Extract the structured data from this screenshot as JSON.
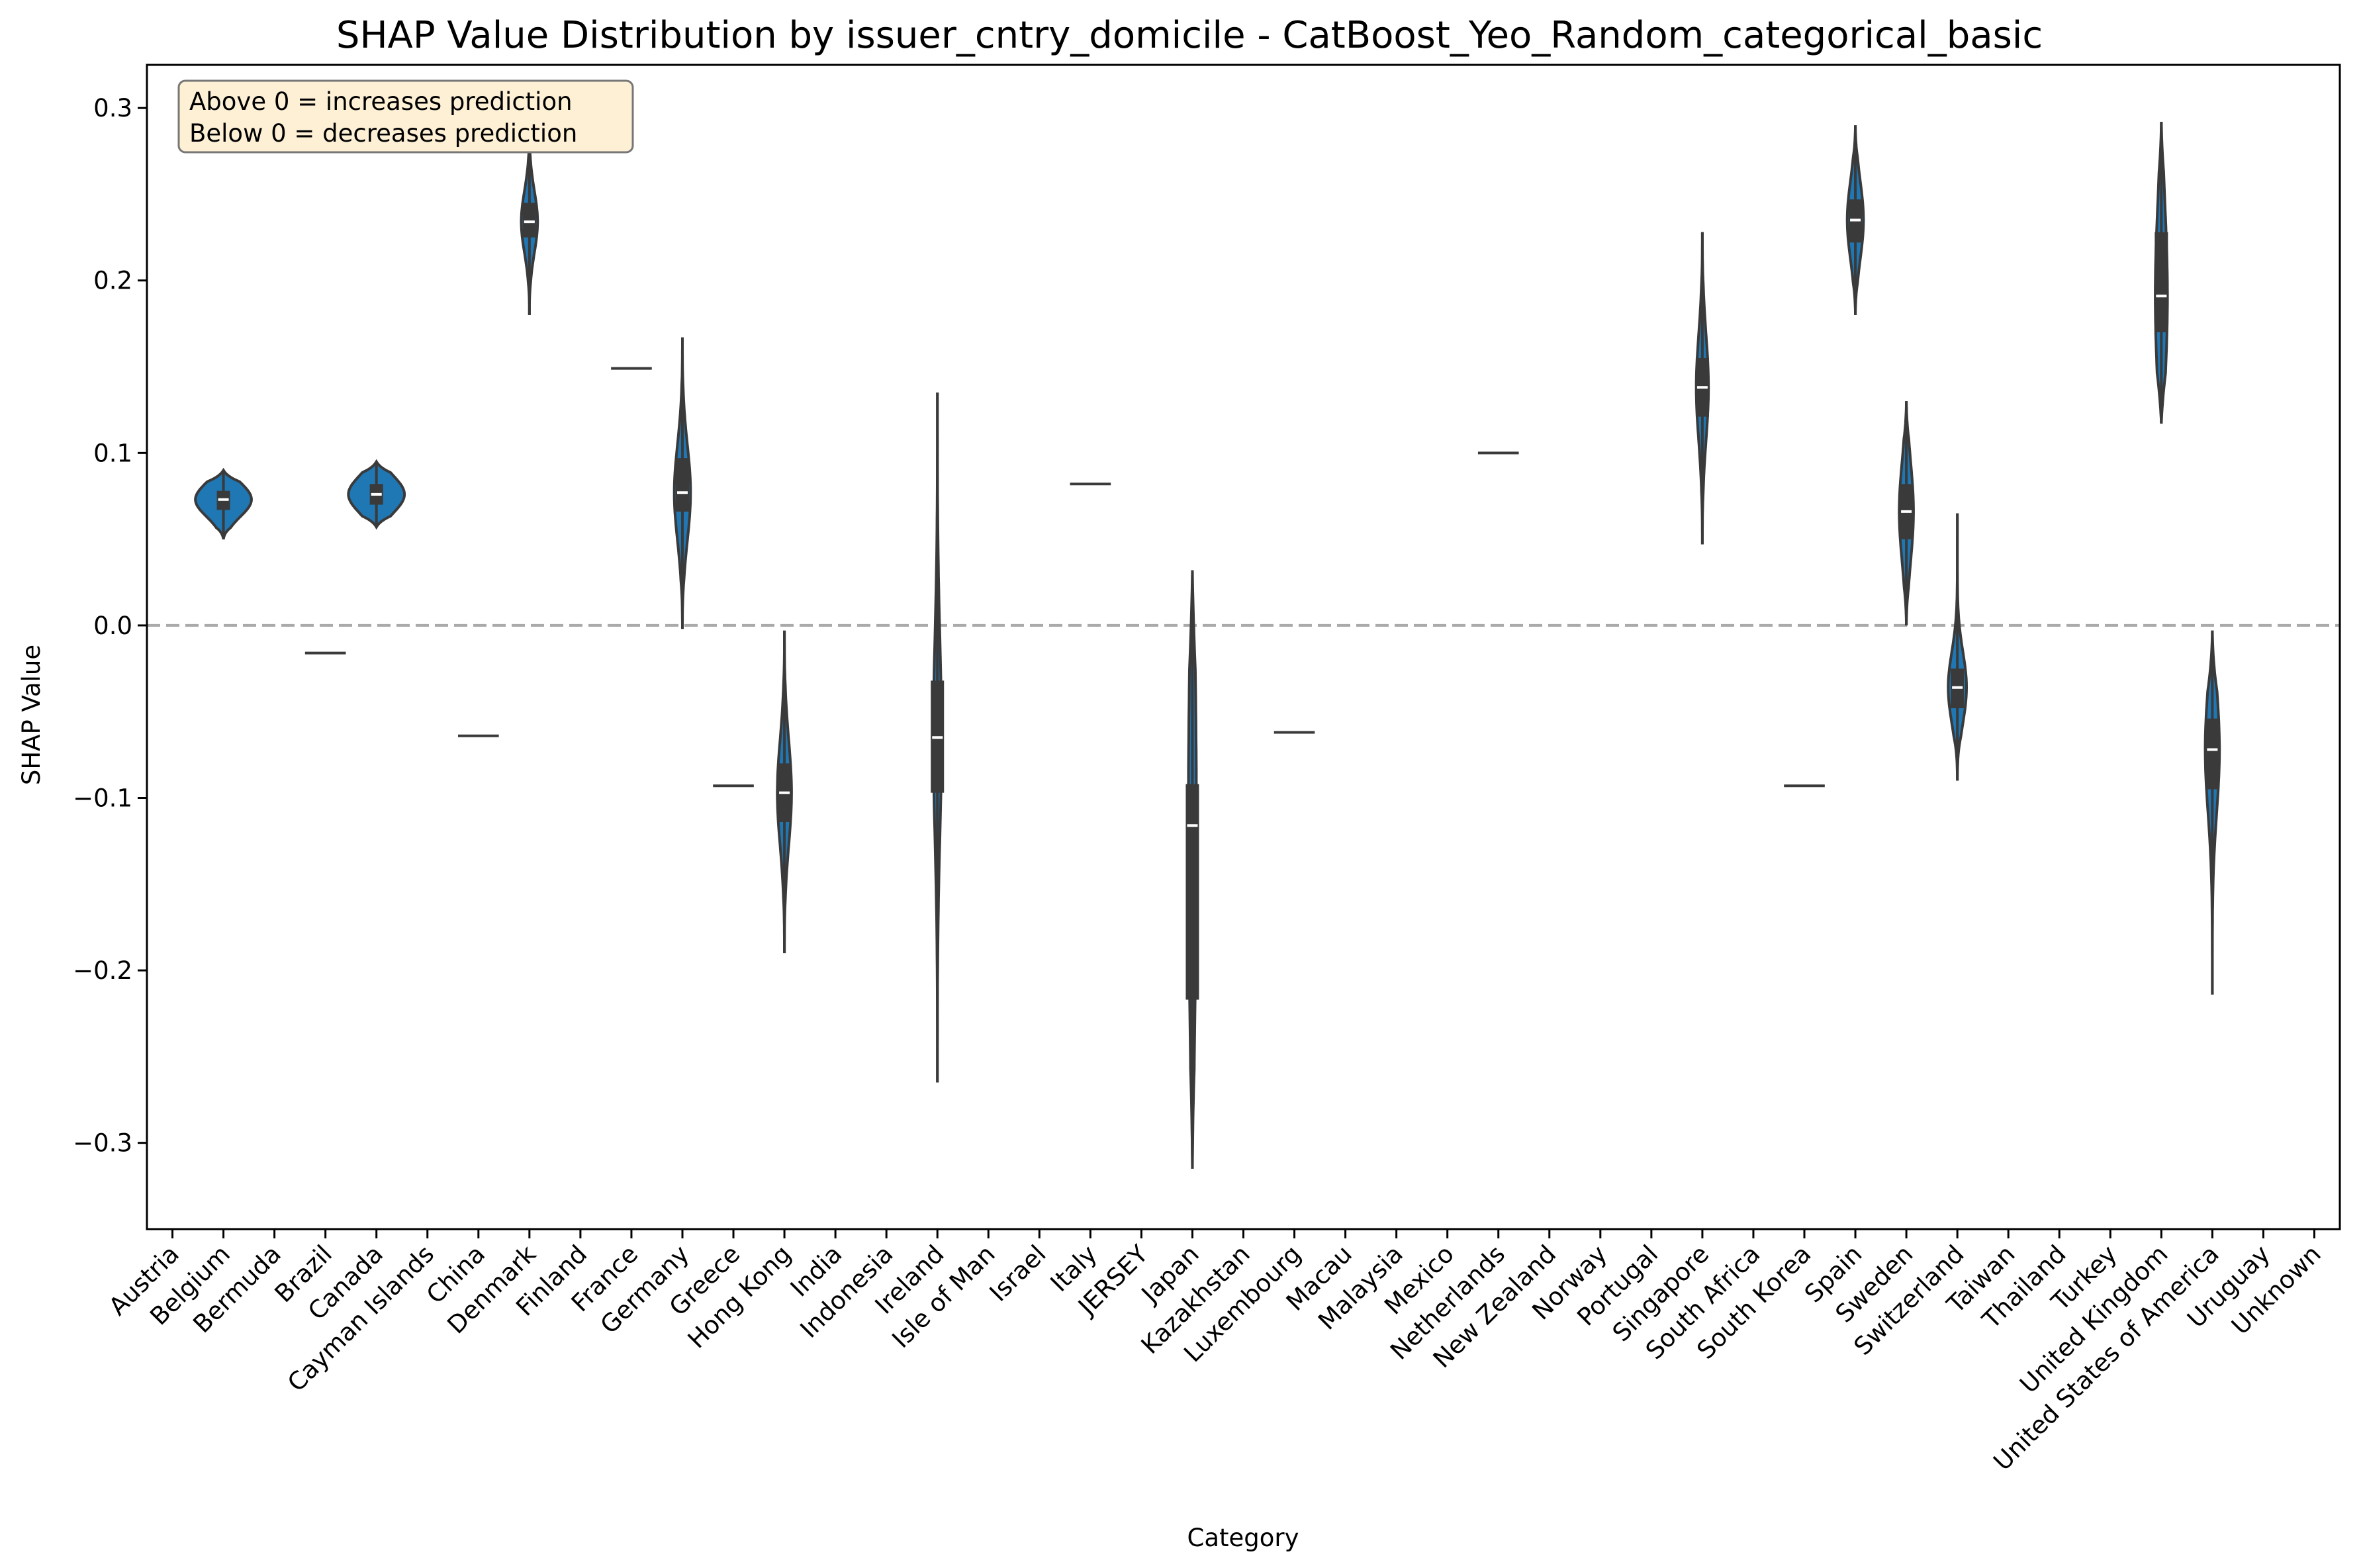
{
  "chart_data": {
    "type": "violin",
    "title": "SHAP Value Distribution by issuer_cntry_domicile - CatBoost_Yeo_Random_categorical_basic",
    "xlabel": "Category",
    "ylabel": "SHAP Value",
    "ylim": [
      -0.35,
      0.325
    ],
    "yticks": [
      0.3,
      0.2,
      0.1,
      0.0,
      -0.1,
      -0.2,
      -0.3
    ],
    "ytick_labels": [
      "0.3",
      "0.2",
      "0.1",
      "0.0",
      "−0.1",
      "−0.2",
      "−0.3"
    ],
    "reference_line": {
      "y": 0.0,
      "style": "dashed"
    },
    "annotation": [
      "Above 0 = increases prediction",
      "Below 0 = decreases prediction"
    ],
    "colors": {
      "violin": "#1f77b4",
      "box": "#3a3a3a",
      "median": "#ffffff",
      "zero_line": "#aaaaaa",
      "note_bg": "#fdf0d5"
    },
    "categories": [
      "Austria",
      "Belgium",
      "Bermuda",
      "Brazil",
      "Canada",
      "Cayman Islands",
      "China",
      "Denmark",
      "Finland",
      "France",
      "Germany",
      "Greece",
      "Hong Kong",
      "India",
      "Indonesia",
      "Ireland",
      "Isle of Man",
      "Israel",
      "Italy",
      "JERSEY",
      "Japan",
      "Kazakhstan",
      "Luxembourg",
      "Macau",
      "Malaysia",
      "Mexico",
      "Netherlands",
      "New Zealand",
      "Norway",
      "Portugal",
      "Singapore",
      "South Africa",
      "South Korea",
      "Spain",
      "Sweden",
      "Switzerland",
      "Taiwan",
      "Thailand",
      "Turkey",
      "United Kingdom",
      "United States of America",
      "Uruguay",
      "Unknown"
    ],
    "violins": [
      {
        "category": "Belgium",
        "min": 0.05,
        "max": 0.09,
        "q1": 0.067,
        "q3": 0.078,
        "median": 0.073,
        "width": 0.55
      },
      {
        "category": "Brazil",
        "single": -0.016
      },
      {
        "category": "Canada",
        "min": 0.057,
        "max": 0.095,
        "q1": 0.07,
        "q3": 0.082,
        "median": 0.076,
        "width": 0.55
      },
      {
        "category": "China",
        "single": -0.064
      },
      {
        "category": "Denmark",
        "min": 0.18,
        "max": 0.29,
        "q1": 0.225,
        "q3": 0.245,
        "median": 0.234,
        "width": 0.16
      },
      {
        "category": "France",
        "single": 0.149
      },
      {
        "category": "Germany",
        "min": -0.002,
        "max": 0.167,
        "q1": 0.066,
        "q3": 0.097,
        "median": 0.077,
        "width": 0.16
      },
      {
        "category": "Greece",
        "single": -0.093
      },
      {
        "category": "Hong Kong",
        "min": -0.19,
        "max": -0.003,
        "q1": -0.114,
        "q3": -0.08,
        "median": -0.097,
        "width": 0.14
      },
      {
        "category": "Ireland",
        "min": -0.265,
        "max": 0.135,
        "q1": -0.097,
        "q3": -0.032,
        "median": -0.065,
        "width": 0.08
      },
      {
        "category": "Italy",
        "single": 0.082
      },
      {
        "category": "Japan",
        "min": -0.315,
        "max": 0.032,
        "q1": -0.217,
        "q3": -0.092,
        "median": -0.116,
        "width": 0.08
      },
      {
        "category": "Luxembourg",
        "single": -0.062
      },
      {
        "category": "Netherlands",
        "single": 0.1
      },
      {
        "category": "Singapore",
        "min": 0.047,
        "max": 0.228,
        "q1": 0.121,
        "q3": 0.155,
        "median": 0.138,
        "width": 0.12
      },
      {
        "category": "South Korea",
        "single": -0.093
      },
      {
        "category": "Spain",
        "min": 0.18,
        "max": 0.29,
        "q1": 0.222,
        "q3": 0.247,
        "median": 0.235,
        "width": 0.16
      },
      {
        "category": "Sweden",
        "min": 0.0,
        "max": 0.13,
        "q1": 0.05,
        "q3": 0.082,
        "median": 0.066,
        "width": 0.14
      },
      {
        "category": "Switzerland",
        "min": -0.09,
        "max": 0.065,
        "q1": -0.048,
        "q3": -0.025,
        "median": -0.036,
        "width": 0.18
      },
      {
        "category": "United Kingdom",
        "min": 0.117,
        "max": 0.292,
        "q1": 0.17,
        "q3": 0.228,
        "median": 0.191,
        "width": 0.12
      },
      {
        "category": "United States of America",
        "min": -0.214,
        "max": -0.003,
        "q1": -0.095,
        "q3": -0.054,
        "median": -0.072,
        "width": 0.14
      }
    ]
  }
}
